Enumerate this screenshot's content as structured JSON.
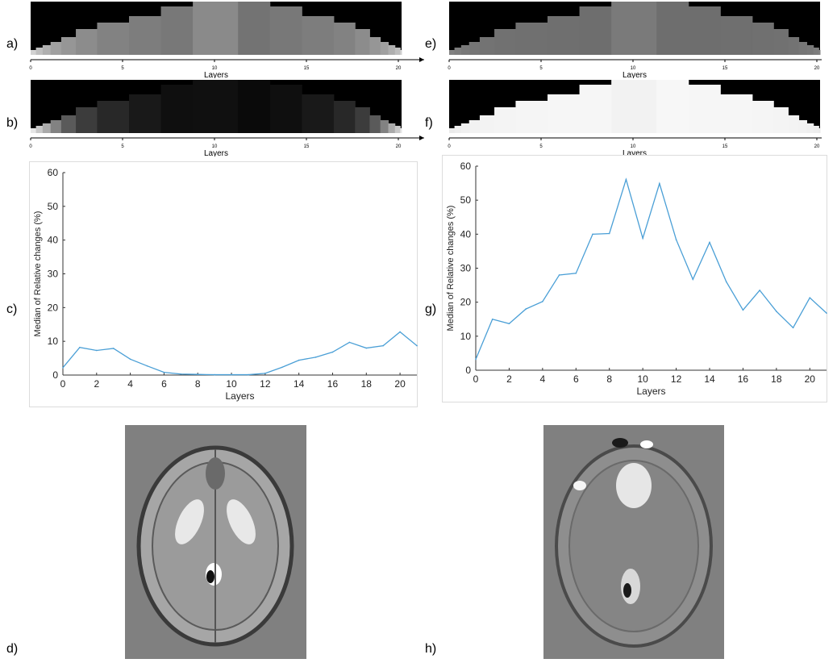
{
  "panel_labels": {
    "a": "a)",
    "b": "b)",
    "c": "c)",
    "d": "d)",
    "e": "e)",
    "f": "f)",
    "g": "g)",
    "h": "h)"
  },
  "layers_word": "Layers",
  "strip_ticks": [
    "0",
    "5",
    "10",
    "15",
    "20"
  ],
  "strips": {
    "a": {
      "top_gray": "#8a8a8a",
      "gray": [
        210,
        190,
        175,
        160,
        150,
        140,
        130,
        125,
        120,
        115,
        112,
        115,
        120,
        125,
        130,
        140,
        150,
        160,
        175,
        190,
        210
      ]
    },
    "e": {
      "top_gray": "#7a7a7a",
      "gray": [
        130,
        125,
        120,
        118,
        115,
        113,
        112,
        111,
        110,
        110,
        110,
        110,
        110,
        111,
        112,
        113,
        115,
        118,
        120,
        125,
        130
      ]
    },
    "b": {
      "top_gray": "#101010",
      "gray": [
        230,
        200,
        170,
        130,
        90,
        60,
        40,
        25,
        15,
        10,
        8,
        10,
        15,
        25,
        40,
        60,
        90,
        130,
        170,
        200,
        230
      ]
    },
    "f": {
      "top_gray": "#f2f2f2",
      "gray": [
        235,
        238,
        240,
        242,
        243,
        244,
        245,
        246,
        246,
        247,
        247,
        247,
        246,
        246,
        245,
        244,
        243,
        242,
        240,
        238,
        235
      ]
    }
  },
  "chart_data": [
    {
      "type": "line",
      "xlabel": "Layers",
      "ylabel": "Median of Relative changes (%)",
      "xlim": [
        0,
        21
      ],
      "ylim": [
        0,
        60
      ],
      "xticks": [
        0,
        2,
        4,
        6,
        8,
        10,
        12,
        14,
        16,
        18,
        20
      ],
      "yticks": [
        0,
        10,
        20,
        30,
        40,
        50,
        60
      ],
      "color": "#4a9fd6",
      "x": [
        0,
        1,
        2,
        3,
        4,
        5,
        6,
        7,
        8,
        9,
        10,
        11,
        12,
        13,
        14,
        15,
        16,
        17,
        18,
        19,
        20,
        21
      ],
      "y": [
        2.2,
        8.2,
        7.3,
        7.9,
        4.7,
        2.7,
        0.8,
        0.3,
        0.2,
        0.1,
        0.1,
        0.1,
        0.5,
        2.3,
        4.4,
        5.3,
        6.8,
        9.7,
        8.0,
        8.7,
        12.8,
        8.7
      ]
    },
    {
      "type": "line",
      "xlabel": "Layers",
      "ylabel": "Median of Relative changes (%)",
      "xlim": [
        0,
        21
      ],
      "ylim": [
        0,
        60
      ],
      "xticks": [
        0,
        2,
        4,
        6,
        8,
        10,
        12,
        14,
        16,
        18,
        20
      ],
      "yticks": [
        0,
        10,
        20,
        30,
        40,
        50,
        60
      ],
      "color": "#4a9fd6",
      "x": [
        0,
        1,
        2,
        3,
        4,
        5,
        6,
        7,
        8,
        9,
        10,
        11,
        12,
        13,
        14,
        15,
        16,
        17,
        18,
        19,
        20,
        21
      ],
      "y": [
        3.2,
        15.0,
        13.7,
        18.0,
        20.2,
        28.0,
        28.5,
        40.0,
        40.2,
        56.1,
        38.8,
        54.9,
        38.4,
        26.7,
        37.6,
        26.0,
        17.7,
        23.5,
        17.3,
        12.5,
        21.3,
        16.8
      ]
    }
  ]
}
